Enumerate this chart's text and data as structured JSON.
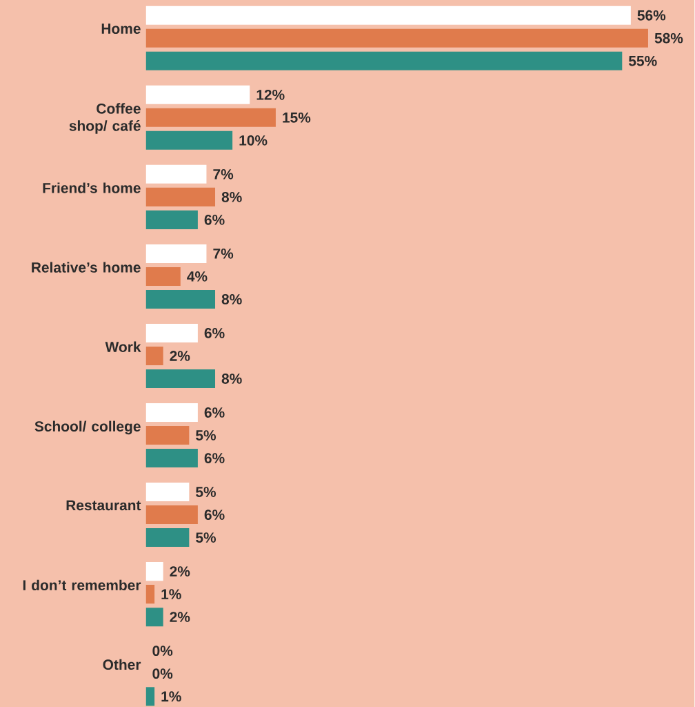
{
  "chart_data": {
    "type": "bar",
    "orientation": "horizontal",
    "categories": [
      "Home",
      "Coffee shop/ café",
      "Friend’s home",
      "Relative’s home",
      "Work",
      "School/ college",
      "Restaurant",
      "I don’t remember",
      "Other"
    ],
    "series": [
      {
        "color": "#ffffff",
        "values": [
          56,
          12,
          7,
          7,
          6,
          6,
          5,
          2,
          0
        ],
        "value_labels": [
          "56%",
          "12%",
          "7%",
          "7%",
          "6%",
          "6%",
          "5%",
          "2%",
          "0%"
        ]
      },
      {
        "color": "#e07b4c",
        "values": [
          58,
          15,
          8,
          4,
          2,
          5,
          6,
          1,
          0
        ],
        "value_labels": [
          "58%",
          "15%",
          "8%",
          "4%",
          "2%",
          "5%",
          "6%",
          "1%",
          "0%"
        ]
      },
      {
        "color": "#2e9085",
        "values": [
          55,
          10,
          6,
          8,
          8,
          6,
          5,
          2,
          1
        ],
        "value_labels": [
          "55%",
          "10%",
          "6%",
          "8%",
          "8%",
          "6%",
          "5%",
          "2%",
          "1%"
        ]
      }
    ]
  }
}
